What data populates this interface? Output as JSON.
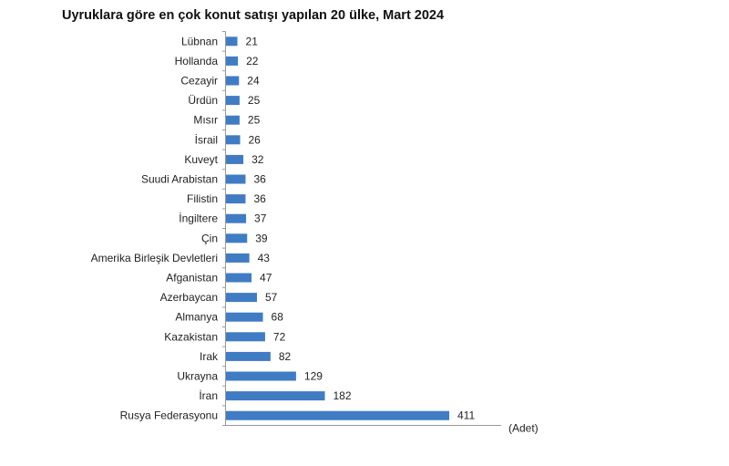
{
  "chart_data": {
    "type": "bar",
    "orientation": "horizontal",
    "title": "Uyruklara göre en çok konut satışı yapılan 20 ülke, Mart 2024",
    "xlabel": "(Adet)",
    "categories": [
      "Lübnan",
      "Hollanda",
      "Cezayir",
      "Ürdün",
      "Mısır",
      "İsrail",
      "Kuveyt",
      "Suudi Arabistan",
      "Filistin",
      "İngiltere",
      "Çin",
      "Amerika Birleşik Devletleri",
      "Afganistan",
      "Azerbaycan",
      "Almanya",
      "Kazakistan",
      "Irak",
      "Ukrayna",
      "İran",
      "Rusya Federasyonu"
    ],
    "values": [
      21,
      22,
      24,
      25,
      25,
      26,
      32,
      36,
      36,
      37,
      39,
      43,
      47,
      57,
      68,
      72,
      82,
      129,
      182,
      411
    ],
    "xlim": [
      0,
      510
    ],
    "grid": false,
    "data_labels": true,
    "bar_color": "#3f7cc4"
  }
}
